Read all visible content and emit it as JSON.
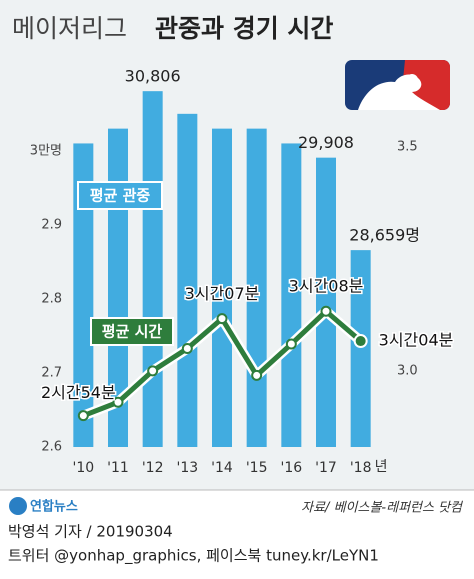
{
  "chart_data": {
    "type": "bar",
    "title": "메이저리그",
    "title_bold": "관중과 경기 시간",
    "categories": [
      "'10",
      "'11",
      "'12",
      "'13",
      "'14",
      "'15",
      "'16",
      "'17",
      "'18"
    ],
    "x_unit": "년",
    "series": [
      {
        "name": "평균 관중",
        "color": "#41ace0",
        "values": [
          3.01,
          3.03,
          3.0806,
          3.05,
          3.03,
          3.03,
          3.01,
          2.9908,
          2.8659
        ],
        "value_labels": [
          null,
          null,
          "30,806",
          null,
          null,
          null,
          null,
          "29,908",
          "28,659명"
        ]
      },
      {
        "name": "평균 시간",
        "type": "line",
        "axis": "y2",
        "color": "#2e7d3c",
        "values": [
          2.9,
          2.93,
          3.0,
          3.05,
          3.1167,
          2.99,
          3.06,
          3.1333,
          3.0667
        ],
        "value_labels": [
          "2시간54분",
          null,
          null,
          null,
          "3시간07분",
          null,
          null,
          "3시간08분",
          "3시간04분"
        ]
      }
    ],
    "ylim": [
      2.6,
      3.12
    ],
    "yticks": [
      2.6,
      2.7,
      2.8,
      2.9,
      {
        "value": 3,
        "label": "3만명"
      }
    ],
    "y2lim": [
      2.83,
      3.69
    ],
    "y2ticks": [
      {
        "value": 3,
        "label": "3.0"
      },
      3.5
    ],
    "grid": false,
    "source": "자료/ 베이스볼-레퍼런스 닷컴",
    "logo": "연합뉴스",
    "byline": "박영석 기자 / 20190304",
    "social": "트위터 @yonhap_graphics, 페이스북 tuney.kr/LeYN1"
  }
}
